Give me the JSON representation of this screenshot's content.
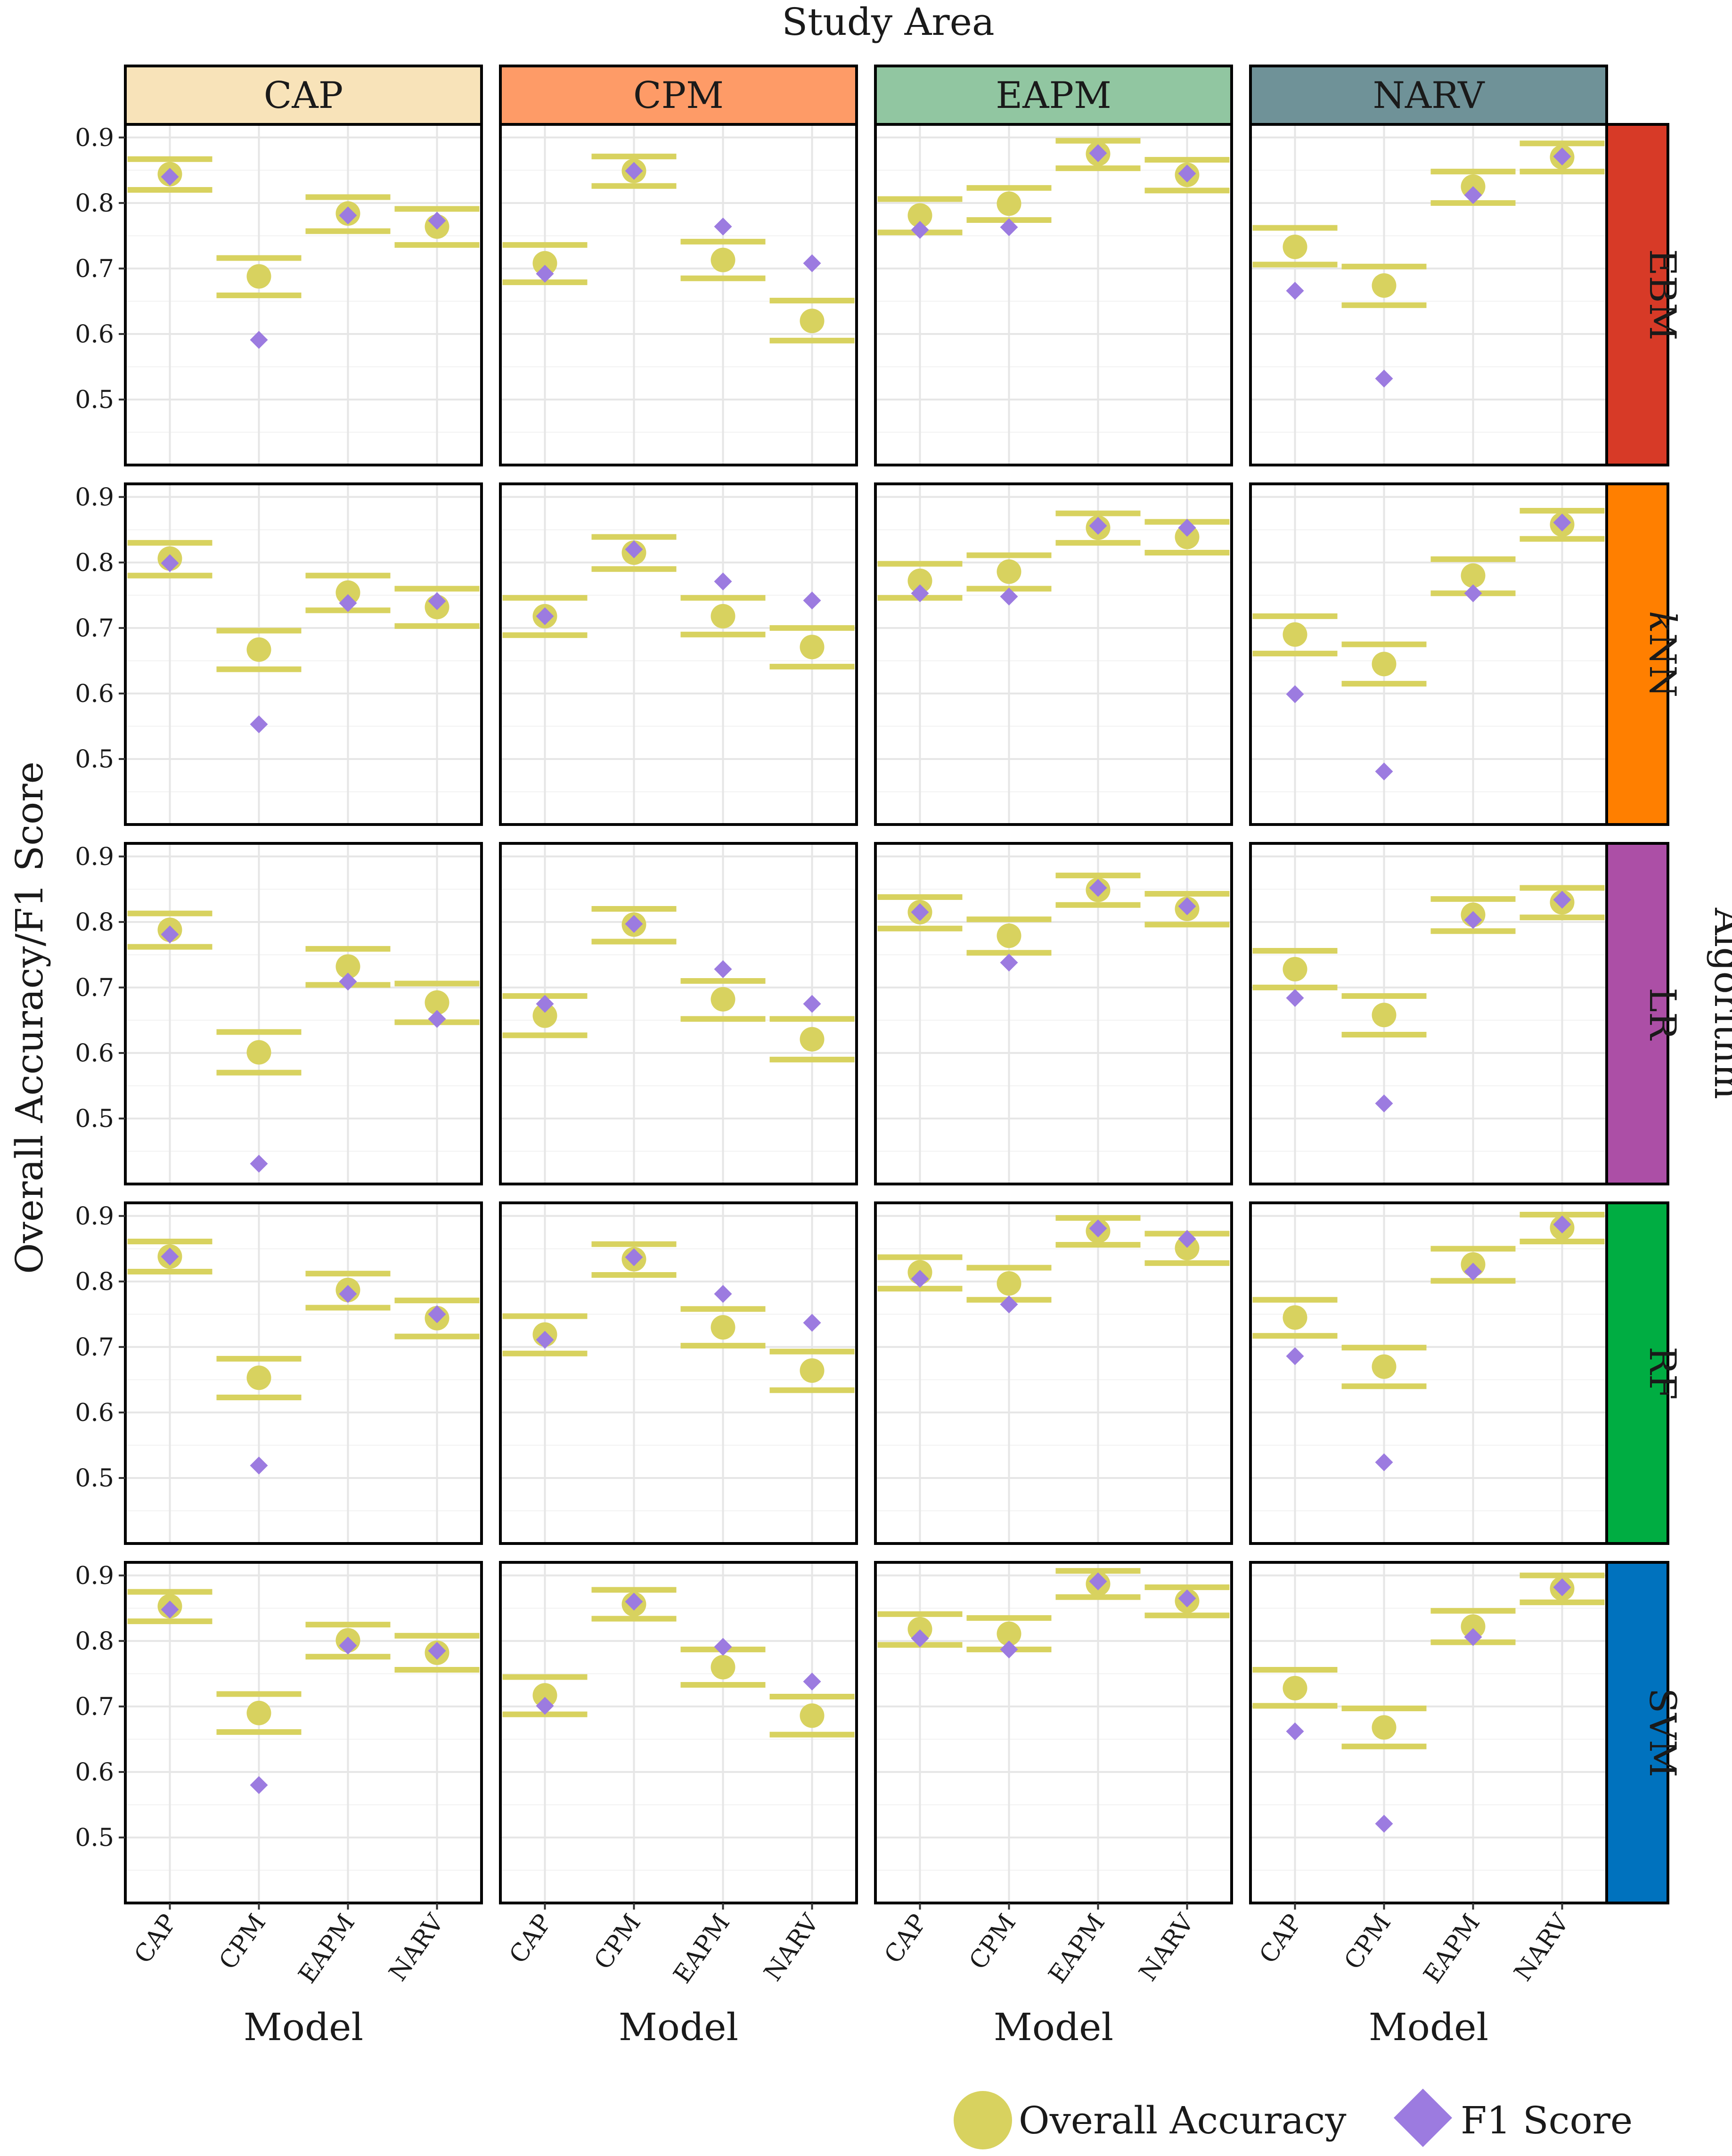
{
  "chart_data": {
    "type": "scatter",
    "title": "Study Area",
    "xlabel": "Model",
    "ylabel": "Overall Accuracy/F1 Score",
    "facet_row_title": "Algorithm",
    "ylim": [
      0.4,
      0.92
    ],
    "yticks": [
      "0.5",
      "0.6",
      "0.7",
      "0.8",
      "0.9"
    ],
    "models": [
      "CAP",
      "CPM",
      "EAPM",
      "NARV"
    ],
    "study_areas": [
      {
        "name": "CAP",
        "color": "#f8e3b9"
      },
      {
        "name": "CPM",
        "color": "#fe9b67"
      },
      {
        "name": "EAPM",
        "color": "#91c6a1"
      },
      {
        "name": "NARV",
        "color": "#6f9298"
      }
    ],
    "algorithms": [
      {
        "name": "EBM",
        "color": "#d73a27"
      },
      {
        "name": "kNN",
        "name_prefix": "k",
        "name_rest": "NN",
        "color": "#ff7f00"
      },
      {
        "name": "LR",
        "color": "#ac4fa6"
      },
      {
        "name": "RF",
        "color": "#00ad42"
      },
      {
        "name": "SVM",
        "color": "#0072be"
      }
    ],
    "legend": [
      {
        "label": "Overall Accuracy",
        "color": "#d8d25f",
        "shape": "circle"
      },
      {
        "label": "F1 Score",
        "color": "#9c7be0",
        "shape": "diamond"
      }
    ],
    "legend_position": "bottom-right",
    "series_colors": {
      "accuracy": "#d8d25f",
      "f1": "#9c7be0"
    },
    "data": {
      "EBM": {
        "CAP": {
          "acc": [
            0.844,
            0.688,
            0.784,
            0.764
          ],
          "lo": [
            0.82,
            0.659,
            0.757,
            0.736
          ],
          "hi": [
            0.867,
            0.716,
            0.809,
            0.791
          ],
          "f1": [
            0.84,
            0.591,
            0.781,
            0.773
          ]
        },
        "CPM": {
          "acc": [
            0.708,
            0.849,
            0.713,
            0.62
          ],
          "lo": [
            0.679,
            0.826,
            0.685,
            0.59
          ],
          "hi": [
            0.736,
            0.871,
            0.741,
            0.651
          ],
          "f1": [
            0.692,
            0.849,
            0.764,
            0.708
          ]
        },
        "EAPM": {
          "acc": [
            0.781,
            0.799,
            0.875,
            0.843
          ],
          "lo": [
            0.755,
            0.774,
            0.853,
            0.819
          ],
          "hi": [
            0.806,
            0.823,
            0.895,
            0.866
          ],
          "f1": [
            0.759,
            0.763,
            0.876,
            0.845
          ]
        },
        "NARV": {
          "acc": [
            0.733,
            0.674,
            0.825,
            0.87
          ],
          "lo": [
            0.706,
            0.644,
            0.8,
            0.848
          ],
          "hi": [
            0.762,
            0.703,
            0.848,
            0.891
          ],
          "f1": [
            0.666,
            0.532,
            0.812,
            0.871
          ]
        }
      },
      "kNN": {
        "CAP": {
          "acc": [
            0.806,
            0.667,
            0.754,
            0.732
          ],
          "lo": [
            0.78,
            0.637,
            0.727,
            0.703
          ],
          "hi": [
            0.83,
            0.696,
            0.78,
            0.76
          ],
          "f1": [
            0.799,
            0.553,
            0.738,
            0.741
          ]
        },
        "CPM": {
          "acc": [
            0.718,
            0.815,
            0.718,
            0.671
          ],
          "lo": [
            0.689,
            0.79,
            0.69,
            0.641
          ],
          "hi": [
            0.746,
            0.839,
            0.746,
            0.7
          ],
          "f1": [
            0.718,
            0.82,
            0.771,
            0.742
          ]
        },
        "EAPM": {
          "acc": [
            0.772,
            0.786,
            0.853,
            0.839
          ],
          "lo": [
            0.746,
            0.76,
            0.83,
            0.815
          ],
          "hi": [
            0.798,
            0.811,
            0.875,
            0.862
          ],
          "f1": [
            0.753,
            0.748,
            0.856,
            0.853
          ]
        },
        "NARV": {
          "acc": [
            0.69,
            0.645,
            0.78,
            0.858
          ],
          "lo": [
            0.661,
            0.615,
            0.753,
            0.836
          ],
          "hi": [
            0.718,
            0.675,
            0.805,
            0.879
          ],
          "f1": [
            0.599,
            0.481,
            0.753,
            0.861
          ]
        }
      },
      "LR": {
        "CAP": {
          "acc": [
            0.788,
            0.601,
            0.732,
            0.677
          ],
          "lo": [
            0.762,
            0.57,
            0.704,
            0.647
          ],
          "hi": [
            0.813,
            0.632,
            0.759,
            0.706
          ],
          "f1": [
            0.781,
            0.431,
            0.709,
            0.652
          ]
        },
        "CPM": {
          "acc": [
            0.657,
            0.796,
            0.682,
            0.621
          ],
          "lo": [
            0.627,
            0.77,
            0.652,
            0.59
          ],
          "hi": [
            0.687,
            0.82,
            0.71,
            0.652
          ],
          "f1": [
            0.675,
            0.797,
            0.728,
            0.675
          ]
        },
        "EAPM": {
          "acc": [
            0.815,
            0.779,
            0.849,
            0.82
          ],
          "lo": [
            0.79,
            0.753,
            0.826,
            0.796
          ],
          "hi": [
            0.838,
            0.804,
            0.871,
            0.843
          ],
          "f1": [
            0.815,
            0.738,
            0.852,
            0.824
          ]
        },
        "NARV": {
          "acc": [
            0.728,
            0.658,
            0.811,
            0.83
          ],
          "lo": [
            0.7,
            0.628,
            0.786,
            0.807
          ],
          "hi": [
            0.756,
            0.687,
            0.835,
            0.852
          ],
          "f1": [
            0.684,
            0.523,
            0.803,
            0.834
          ]
        }
      },
      "RF": {
        "CAP": {
          "acc": [
            0.838,
            0.653,
            0.787,
            0.744
          ],
          "lo": [
            0.815,
            0.623,
            0.76,
            0.716
          ],
          "hi": [
            0.861,
            0.682,
            0.812,
            0.771
          ],
          "f1": [
            0.838,
            0.519,
            0.781,
            0.75
          ]
        },
        "CPM": {
          "acc": [
            0.719,
            0.834,
            0.73,
            0.664
          ],
          "lo": [
            0.69,
            0.81,
            0.702,
            0.634
          ],
          "hi": [
            0.747,
            0.857,
            0.758,
            0.693
          ],
          "f1": [
            0.711,
            0.837,
            0.781,
            0.737
          ]
        },
        "EAPM": {
          "acc": [
            0.814,
            0.797,
            0.877,
            0.851
          ],
          "lo": [
            0.789,
            0.772,
            0.856,
            0.828
          ],
          "hi": [
            0.837,
            0.821,
            0.897,
            0.873
          ],
          "f1": [
            0.804,
            0.765,
            0.881,
            0.865
          ]
        },
        "NARV": {
          "acc": [
            0.745,
            0.67,
            0.826,
            0.882
          ],
          "lo": [
            0.717,
            0.64,
            0.801,
            0.861
          ],
          "hi": [
            0.772,
            0.699,
            0.85,
            0.902
          ],
          "f1": [
            0.686,
            0.524,
            0.815,
            0.887
          ]
        }
      },
      "SVM": {
        "CAP": {
          "acc": [
            0.853,
            0.69,
            0.801,
            0.782
          ],
          "lo": [
            0.83,
            0.661,
            0.776,
            0.756
          ],
          "hi": [
            0.875,
            0.719,
            0.825,
            0.808
          ],
          "f1": [
            0.848,
            0.58,
            0.793,
            0.785
          ]
        },
        "CPM": {
          "acc": [
            0.717,
            0.856,
            0.76,
            0.686
          ],
          "lo": [
            0.688,
            0.834,
            0.733,
            0.657
          ],
          "hi": [
            0.745,
            0.878,
            0.787,
            0.715
          ],
          "f1": [
            0.701,
            0.86,
            0.791,
            0.738
          ]
        },
        "EAPM": {
          "acc": [
            0.818,
            0.811,
            0.887,
            0.861
          ],
          "lo": [
            0.794,
            0.787,
            0.867,
            0.839
          ],
          "hi": [
            0.841,
            0.835,
            0.907,
            0.882
          ],
          "f1": [
            0.804,
            0.787,
            0.891,
            0.865
          ]
        },
        "NARV": {
          "acc": [
            0.728,
            0.668,
            0.822,
            0.88
          ],
          "lo": [
            0.701,
            0.639,
            0.798,
            0.859
          ],
          "hi": [
            0.756,
            0.697,
            0.846,
            0.9
          ],
          "f1": [
            0.662,
            0.521,
            0.806,
            0.882
          ]
        }
      }
    }
  }
}
